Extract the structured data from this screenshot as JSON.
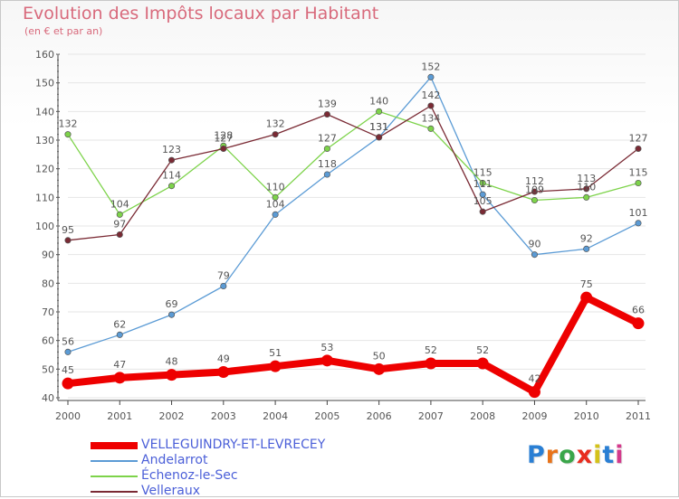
{
  "header": {
    "title": "Evolution des Impôts locaux par Habitant",
    "subtitle": "(en € et par an)"
  },
  "logo": {
    "text": "Proxiti",
    "letter_colors": [
      "#2a7fd4",
      "#e8731a",
      "#3aa64a",
      "#e82c1e",
      "#d4c21a",
      "#2a7fd4",
      "#d43a8c"
    ]
  },
  "colors": {
    "axis": "#444444",
    "grid": "#e6e6e6",
    "label": "#555555",
    "legend_text": "#4b5fd8"
  },
  "chart_data": {
    "type": "line",
    "title": "",
    "xlabel": "",
    "ylabel": "",
    "x": [
      "2000",
      "2001",
      "2002",
      "2003",
      "2004",
      "2005",
      "2006",
      "2007",
      "2008",
      "2009",
      "2010",
      "2011"
    ],
    "ylim": [
      40,
      160
    ],
    "yticks": [
      40,
      50,
      60,
      70,
      80,
      90,
      100,
      110,
      120,
      130,
      140,
      150,
      160
    ],
    "grid": "horizontal",
    "legend_position": "bottom-left",
    "series": [
      {
        "name": "VELLEGUINDRY-ET-LEVRECEY",
        "color": "#ee0000",
        "emphasis": true,
        "values": [
          45,
          47,
          48,
          49,
          51,
          53,
          50,
          52,
          52,
          42,
          75,
          66
        ]
      },
      {
        "name": "Andelarrot",
        "color": "#5b9bd5",
        "values": [
          56,
          62,
          69,
          79,
          104,
          118,
          131,
          152,
          111,
          90,
          92,
          101
        ]
      },
      {
        "name": "Échenoz-le-Sec",
        "color": "#7dd34a",
        "values": [
          132,
          104,
          114,
          128,
          110,
          127,
          140,
          134,
          115,
          109,
          110,
          115
        ]
      },
      {
        "name": "Velleraux",
        "color": "#7a2a34",
        "values": [
          95,
          97,
          123,
          127,
          132,
          139,
          131,
          142,
          105,
          112,
          113,
          127
        ]
      }
    ]
  }
}
